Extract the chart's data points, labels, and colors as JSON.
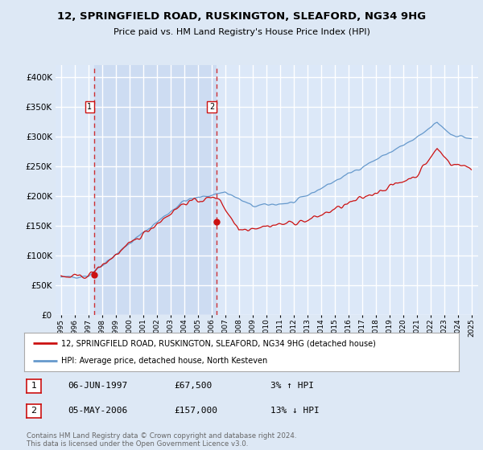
{
  "title": "12, SPRINGFIELD ROAD, RUSKINGTON, SLEAFORD, NG34 9HG",
  "subtitle": "Price paid vs. HM Land Registry's House Price Index (HPI)",
  "bg_color": "#dde8f5",
  "plot_bg_color": "#dce8f8",
  "shade_color": "#c8d8f0",
  "grid_color": "#ffffff",
  "sale1_date": 1997.44,
  "sale1_price": 67500,
  "sale2_date": 2006.37,
  "sale2_price": 157000,
  "legend_line1": "12, SPRINGFIELD ROAD, RUSKINGTON, SLEAFORD, NG34 9HG (detached house)",
  "legend_line2": "HPI: Average price, detached house, North Kesteven",
  "table_rows": [
    [
      "1",
      "06-JUN-1997",
      "£67,500",
      "3% ↑ HPI"
    ],
    [
      "2",
      "05-MAY-2006",
      "£157,000",
      "13% ↓ HPI"
    ]
  ],
  "footer": "Contains HM Land Registry data © Crown copyright and database right 2024.\nThis data is licensed under the Open Government Licence v3.0.",
  "red_color": "#cc1111",
  "blue_color": "#6699cc",
  "ylim": [
    0,
    420000
  ],
  "yticks": [
    0,
    50000,
    100000,
    150000,
    200000,
    250000,
    300000,
    350000,
    400000
  ]
}
